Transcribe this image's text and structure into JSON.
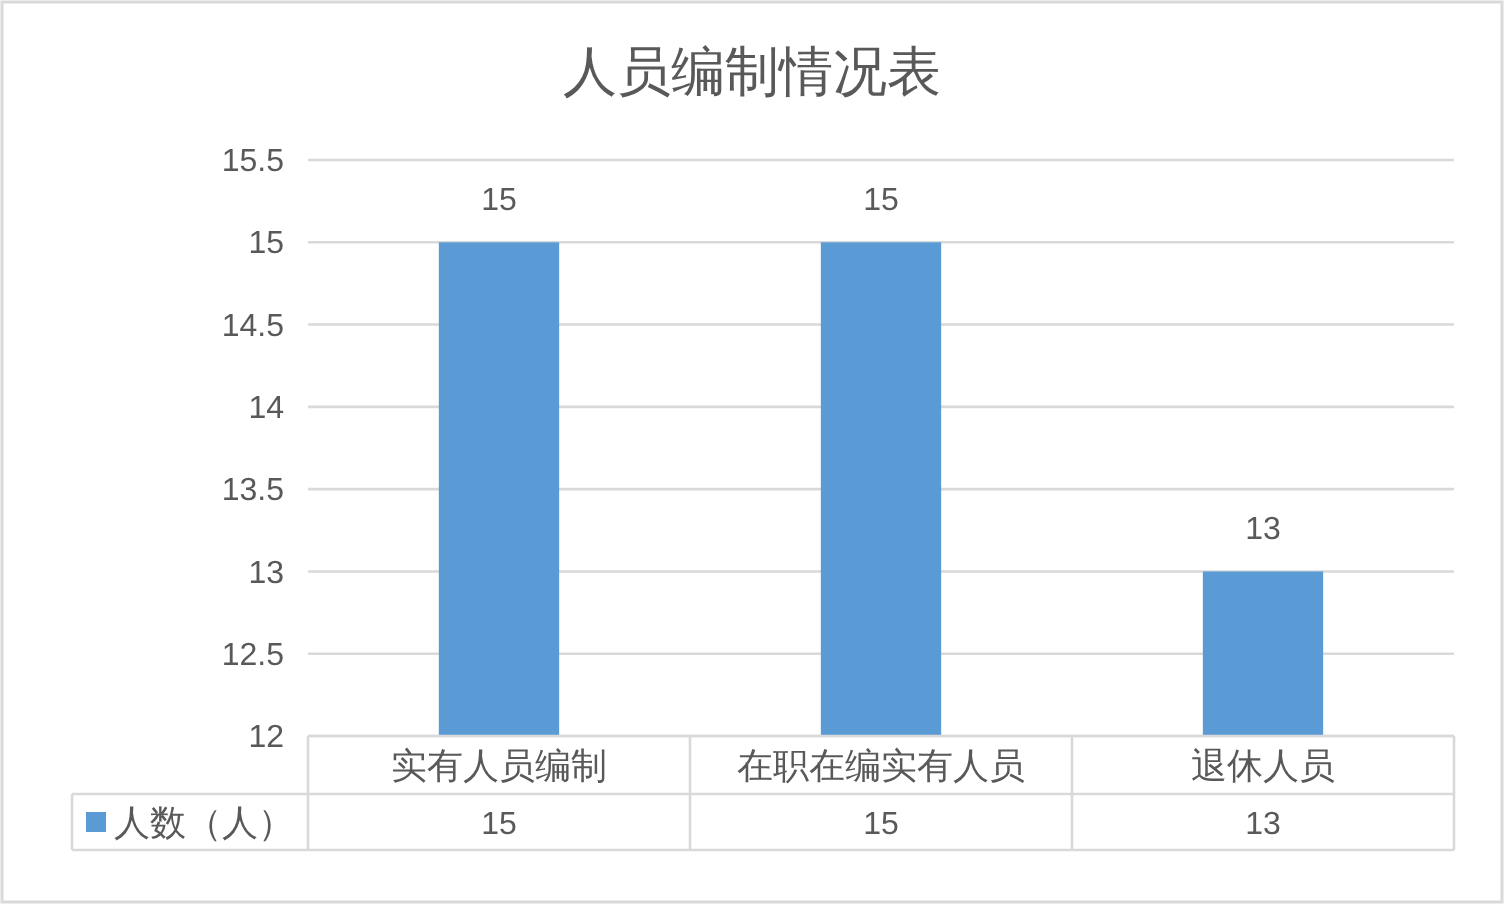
{
  "chart_data": {
    "type": "bar",
    "title": "人员编制情况表",
    "categories": [
      "实有人员编制",
      "在职在编实有人员",
      "退休人员"
    ],
    "series": [
      {
        "name": "人数（人）",
        "color": "#5b9bd5",
        "values": [
          15,
          15,
          13
        ]
      }
    ],
    "ylim": [
      12,
      15.5
    ],
    "yticks": [
      12,
      12.5,
      13,
      13.5,
      14,
      14.5,
      15,
      15.5
    ],
    "grid": "y",
    "data_labels": true,
    "legend": "bottom",
    "annotations": [
      {
        "text": "15",
        "x": "实有人员编制",
        "y": 15
      },
      {
        "text": "15",
        "x": "在职在编实有人员",
        "y": 15
      },
      {
        "text": "13",
        "x": "退休人员",
        "y": 13
      }
    ]
  }
}
